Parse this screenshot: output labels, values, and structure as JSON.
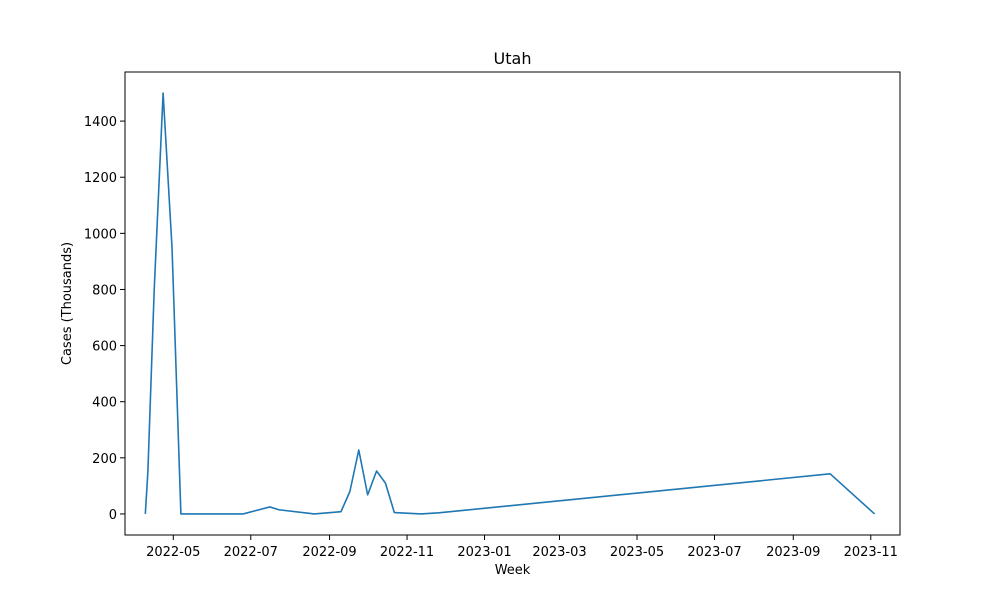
{
  "chart_data": {
    "type": "line",
    "title": "Utah",
    "xlabel": "Week",
    "ylabel": "Cases (Thousands)",
    "grid": false,
    "legend": "none",
    "xlim": [
      "2022-03-24",
      "2023-11-24"
    ],
    "ylim": [
      -75,
      1575
    ],
    "x_ticks": [
      "2022-05",
      "2022-07",
      "2022-09",
      "2022-11",
      "2023-01",
      "2023-03",
      "2023-05",
      "2023-07",
      "2023-09",
      "2023-11"
    ],
    "y_ticks": [
      0,
      200,
      400,
      600,
      800,
      1000,
      1200,
      1400
    ],
    "series": [
      {
        "color": "#1f77b4",
        "points": [
          {
            "x": "2022-04-09",
            "y": 0
          },
          {
            "x": "2022-04-11",
            "y": 150
          },
          {
            "x": "2022-04-16",
            "y": 800
          },
          {
            "x": "2022-04-23",
            "y": 1500
          },
          {
            "x": "2022-04-30",
            "y": 950
          },
          {
            "x": "2022-05-07",
            "y": 0
          },
          {
            "x": "2022-06-25",
            "y": 0
          },
          {
            "x": "2022-07-16",
            "y": 25
          },
          {
            "x": "2022-07-23",
            "y": 15
          },
          {
            "x": "2022-08-20",
            "y": 0
          },
          {
            "x": "2022-09-10",
            "y": 8
          },
          {
            "x": "2022-09-17",
            "y": 80
          },
          {
            "x": "2022-09-24",
            "y": 228
          },
          {
            "x": "2022-10-01",
            "y": 68
          },
          {
            "x": "2022-10-08",
            "y": 153
          },
          {
            "x": "2022-10-15",
            "y": 110
          },
          {
            "x": "2022-10-22",
            "y": 5
          },
          {
            "x": "2022-11-12",
            "y": 0
          },
          {
            "x": "2022-11-26",
            "y": 4
          },
          {
            "x": "2023-09-30",
            "y": 143
          },
          {
            "x": "2023-11-04",
            "y": 0
          }
        ]
      }
    ]
  }
}
